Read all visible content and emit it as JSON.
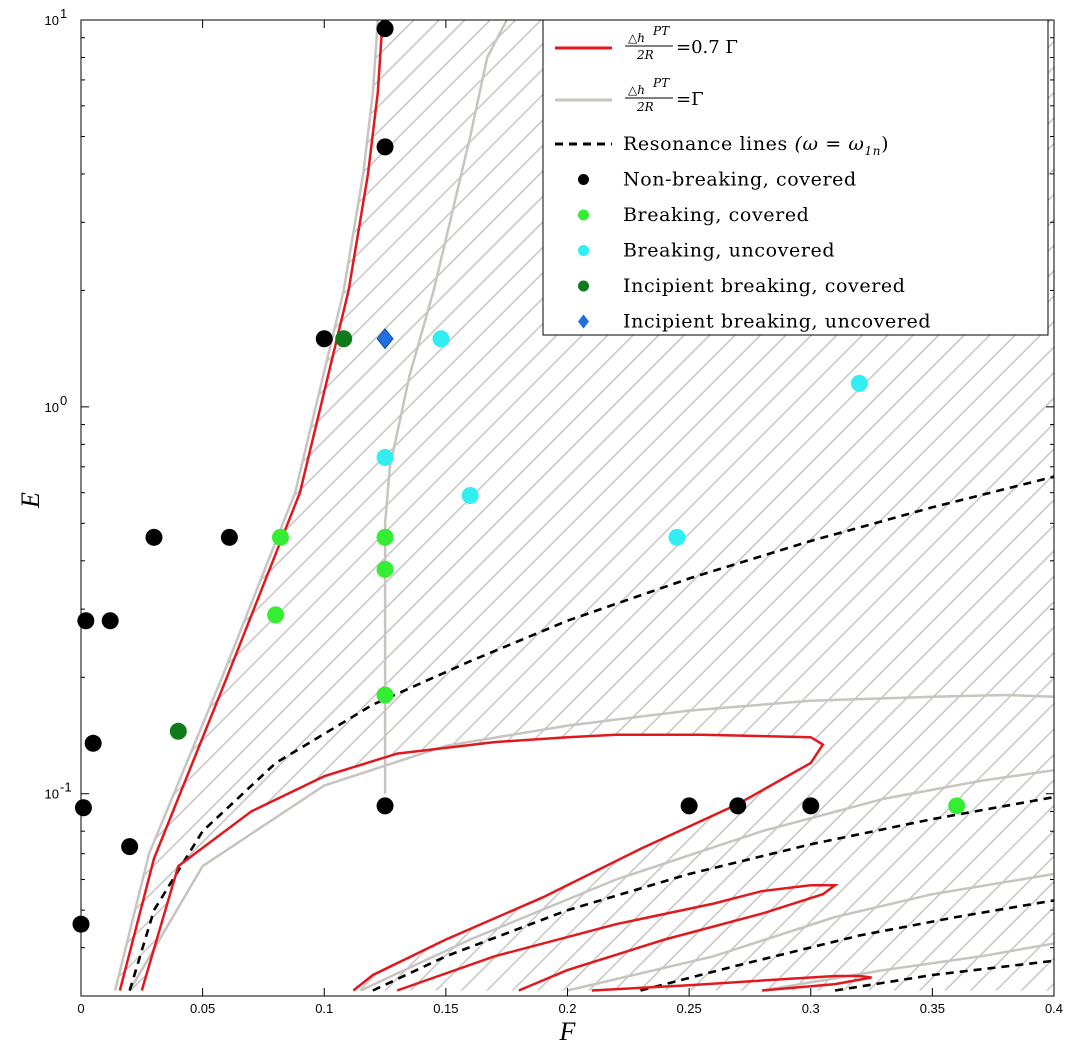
{
  "chart_data": {
    "type": "scatter",
    "xlabel": "F",
    "ylabel": "E",
    "xlim": [
      0,
      0.4
    ],
    "ylim": [
      0.03,
      10
    ],
    "yscale": "log",
    "grid": false,
    "legend_position": "top-right",
    "x_ticks": [
      "0",
      "0.05",
      "0.1",
      "0.15",
      "0.2",
      "0.25",
      "0.3",
      "0.35",
      "0.4"
    ],
    "x_tick_values": [
      0,
      0.05,
      0.1,
      0.15,
      0.2,
      0.25,
      0.3,
      0.35,
      0.4
    ],
    "y_ticks": [
      {
        "value": 10,
        "base": "10",
        "exp": "1"
      },
      {
        "value": 1,
        "base": "10",
        "exp": "0"
      },
      {
        "value": 0.1,
        "base": "10",
        "exp": "-1"
      }
    ],
    "legend": [
      {
        "key": "red",
        "kind": "line",
        "color": "#e0191f",
        "top": "△h",
        "sup": "PT",
        "bottom": "2R",
        "rhs": "=0.7 Γ"
      },
      {
        "key": "gray",
        "kind": "line",
        "color": "#c8c4bf",
        "top": "△h",
        "sup": "PT",
        "bottom": "2R",
        "rhs": "=Γ"
      },
      {
        "key": "res",
        "kind": "dashed",
        "color": "#000000",
        "label": "Resonance lines",
        "math": "(ω = ω",
        "sub": "1n",
        "close": ")"
      },
      {
        "key": "nbc",
        "kind": "dot",
        "color": "#000000",
        "label": "Non-breaking, covered"
      },
      {
        "key": "bc",
        "kind": "dot",
        "color": "#33ee33",
        "label": "Breaking, covered"
      },
      {
        "key": "bu",
        "kind": "dot",
        "color": "#33eef0",
        "label": "Breaking, uncovered"
      },
      {
        "key": "ibc",
        "kind": "dot",
        "color": "#0f7a1a",
        "label": "Incipient breaking, covered"
      },
      {
        "key": "ibu",
        "kind": "diamond",
        "color": "#1e6fe0",
        "label": "Incipient breaking, uncovered"
      }
    ],
    "series": [
      {
        "name": "Non-breaking, covered",
        "color": "#000000",
        "marker": "dot",
        "points": [
          {
            "x": 0.125,
            "y": 9.5
          },
          {
            "x": 0.125,
            "y": 4.7
          },
          {
            "x": 0.1,
            "y": 1.5
          },
          {
            "x": 0.03,
            "y": 0.46
          },
          {
            "x": 0.061,
            "y": 0.46
          },
          {
            "x": 0.002,
            "y": 0.28
          },
          {
            "x": 0.012,
            "y": 0.28
          },
          {
            "x": 0.005,
            "y": 0.135
          },
          {
            "x": 0.001,
            "y": 0.092
          },
          {
            "x": 0.02,
            "y": 0.073
          },
          {
            "x": 0.0,
            "y": 0.046
          },
          {
            "x": 0.125,
            "y": 0.093
          },
          {
            "x": 0.25,
            "y": 0.093
          },
          {
            "x": 0.27,
            "y": 0.093
          },
          {
            "x": 0.3,
            "y": 0.093
          }
        ]
      },
      {
        "name": "Breaking, covered",
        "color": "#33ee33",
        "marker": "dot",
        "points": [
          {
            "x": 0.082,
            "y": 0.46
          },
          {
            "x": 0.08,
            "y": 0.29
          },
          {
            "x": 0.125,
            "y": 0.46
          },
          {
            "x": 0.125,
            "y": 0.38
          },
          {
            "x": 0.125,
            "y": 0.18
          },
          {
            "x": 0.36,
            "y": 0.093
          }
        ]
      },
      {
        "name": "Breaking, uncovered",
        "color": "#33eef0",
        "marker": "dot",
        "points": [
          {
            "x": 0.148,
            "y": 1.5
          },
          {
            "x": 0.125,
            "y": 0.74
          },
          {
            "x": 0.16,
            "y": 0.59
          },
          {
            "x": 0.245,
            "y": 0.46
          },
          {
            "x": 0.32,
            "y": 1.15
          }
        ]
      },
      {
        "name": "Incipient breaking, covered",
        "color": "#0f7a1a",
        "marker": "dot",
        "points": [
          {
            "x": 0.108,
            "y": 1.5
          },
          {
            "x": 0.04,
            "y": 0.145
          }
        ]
      },
      {
        "name": "Incipient breaking, uncovered",
        "color": "#1e6fe0",
        "marker": "diamond",
        "points": [
          {
            "x": 0.125,
            "y": 1.5
          }
        ]
      }
    ],
    "curves": [
      {
        "kind": "red",
        "color": "#e0191f",
        "points": [
          [
            0.016,
            0.031
          ],
          [
            0.03,
            0.068
          ],
          [
            0.06,
            0.2
          ],
          [
            0.09,
            0.6
          ],
          [
            0.11,
            2.0
          ],
          [
            0.118,
            4.0
          ],
          [
            0.122,
            6.5
          ],
          [
            0.124,
            10
          ]
        ]
      },
      {
        "kind": "red",
        "color": "#e0191f",
        "points": [
          [
            0.025,
            0.031
          ],
          [
            0.04,
            0.065
          ],
          [
            0.07,
            0.09
          ],
          [
            0.1,
            0.111
          ],
          [
            0.13,
            0.127
          ],
          [
            0.17,
            0.136
          ],
          [
            0.2,
            0.14
          ],
          [
            0.22,
            0.142
          ],
          [
            0.255,
            0.142
          ],
          [
            0.3,
            0.14
          ],
          [
            0.305,
            0.134
          ],
          [
            0.3,
            0.12
          ],
          [
            0.27,
            0.094
          ],
          [
            0.23,
            0.072
          ],
          [
            0.19,
            0.054
          ],
          [
            0.15,
            0.042
          ],
          [
            0.12,
            0.034
          ],
          [
            0.112,
            0.031
          ]
        ]
      },
      {
        "kind": "red",
        "color": "#e0191f",
        "points": [
          [
            0.13,
            0.031
          ],
          [
            0.17,
            0.038
          ],
          [
            0.22,
            0.046
          ],
          [
            0.26,
            0.052
          ],
          [
            0.28,
            0.056
          ],
          [
            0.3,
            0.058
          ],
          [
            0.31,
            0.058
          ],
          [
            0.305,
            0.055
          ],
          [
            0.28,
            0.049
          ],
          [
            0.24,
            0.042
          ],
          [
            0.2,
            0.035
          ],
          [
            0.18,
            0.031
          ]
        ]
      },
      {
        "kind": "red",
        "color": "#e0191f",
        "points": [
          [
            0.21,
            0.031
          ],
          [
            0.25,
            0.032
          ],
          [
            0.29,
            0.0332
          ],
          [
            0.31,
            0.0338
          ],
          [
            0.32,
            0.0338
          ],
          [
            0.325,
            0.0335
          ],
          [
            0.31,
            0.0322
          ],
          [
            0.28,
            0.031
          ]
        ]
      },
      {
        "kind": "gray",
        "color": "#c8c4bf",
        "points": [
          [
            0.014,
            0.031
          ],
          [
            0.028,
            0.07
          ],
          [
            0.058,
            0.2
          ],
          [
            0.088,
            0.6
          ],
          [
            0.108,
            2.0
          ],
          [
            0.116,
            4.0
          ],
          [
            0.12,
            6.5
          ],
          [
            0.122,
            10
          ]
        ]
      },
      {
        "kind": "gray",
        "color": "#c8c4bf",
        "points": [
          [
            0.125,
            0.1
          ],
          [
            0.125,
            0.5
          ],
          [
            0.127,
            0.7
          ],
          [
            0.135,
            1.2
          ],
          [
            0.145,
            2.0
          ],
          [
            0.16,
            5.0
          ],
          [
            0.167,
            8.0
          ],
          [
            0.175,
            10
          ]
        ]
      },
      {
        "kind": "gray",
        "color": "#c8c4bf",
        "points": [
          [
            0.02,
            0.031
          ],
          [
            0.05,
            0.065
          ],
          [
            0.1,
            0.105
          ],
          [
            0.15,
            0.133
          ],
          [
            0.2,
            0.15
          ],
          [
            0.25,
            0.164
          ],
          [
            0.3,
            0.174
          ],
          [
            0.35,
            0.178
          ],
          [
            0.38,
            0.18
          ],
          [
            0.4,
            0.178
          ]
        ]
      },
      {
        "kind": "gray",
        "color": "#c8c4bf",
        "points": [
          [
            0.115,
            0.031
          ],
          [
            0.16,
            0.042
          ],
          [
            0.22,
            0.06
          ],
          [
            0.28,
            0.08
          ],
          [
            0.33,
            0.097
          ],
          [
            0.37,
            0.108
          ],
          [
            0.4,
            0.115
          ]
        ]
      },
      {
        "kind": "gray",
        "color": "#c8c4bf",
        "points": [
          [
            0.2,
            0.031
          ],
          [
            0.26,
            0.038
          ],
          [
            0.31,
            0.048
          ],
          [
            0.35,
            0.055
          ],
          [
            0.4,
            0.062
          ]
        ]
      },
      {
        "kind": "gray",
        "color": "#c8c4bf",
        "points": [
          [
            0.28,
            0.031
          ],
          [
            0.33,
            0.035
          ],
          [
            0.37,
            0.038
          ],
          [
            0.4,
            0.041
          ]
        ]
      },
      {
        "kind": "res",
        "color": "#000000",
        "points": [
          [
            0.02,
            0.031
          ],
          [
            0.03,
            0.05
          ],
          [
            0.05,
            0.08
          ],
          [
            0.08,
            0.12
          ],
          [
            0.12,
            0.17
          ],
          [
            0.16,
            0.22
          ],
          [
            0.2,
            0.28
          ],
          [
            0.25,
            0.36
          ],
          [
            0.3,
            0.45
          ],
          [
            0.35,
            0.55
          ],
          [
            0.4,
            0.66
          ]
        ]
      },
      {
        "kind": "res",
        "color": "#000000",
        "points": [
          [
            0.12,
            0.031
          ],
          [
            0.15,
            0.038
          ],
          [
            0.2,
            0.05
          ],
          [
            0.25,
            0.062
          ],
          [
            0.3,
            0.074
          ],
          [
            0.35,
            0.086
          ],
          [
            0.4,
            0.098
          ]
        ]
      },
      {
        "kind": "res",
        "color": "#000000",
        "points": [
          [
            0.23,
            0.031
          ],
          [
            0.27,
            0.036
          ],
          [
            0.32,
            0.043
          ],
          [
            0.36,
            0.048
          ],
          [
            0.4,
            0.053
          ]
        ]
      },
      {
        "kind": "res",
        "color": "#000000",
        "points": [
          [
            0.31,
            0.031
          ],
          [
            0.35,
            0.034
          ],
          [
            0.4,
            0.037
          ]
        ]
      }
    ],
    "hatched_region": [
      [
        0.014,
        0.031
      ],
      [
        0.028,
        0.07
      ],
      [
        0.058,
        0.2
      ],
      [
        0.088,
        0.6
      ],
      [
        0.108,
        2.0
      ],
      [
        0.116,
        4.0
      ],
      [
        0.12,
        6.5
      ],
      [
        0.122,
        10
      ],
      [
        0.4,
        10
      ],
      [
        0.4,
        0.031
      ]
    ],
    "unhatched_regions": [
      [
        [
          0.025,
          0.031
        ],
        [
          0.04,
          0.065
        ],
        [
          0.07,
          0.09
        ],
        [
          0.1,
          0.111
        ],
        [
          0.13,
          0.127
        ],
        [
          0.17,
          0.136
        ],
        [
          0.2,
          0.14
        ],
        [
          0.22,
          0.142
        ],
        [
          0.255,
          0.142
        ],
        [
          0.3,
          0.14
        ],
        [
          0.305,
          0.134
        ],
        [
          0.3,
          0.12
        ],
        [
          0.27,
          0.094
        ],
        [
          0.23,
          0.072
        ],
        [
          0.19,
          0.054
        ],
        [
          0.15,
          0.042
        ],
        [
          0.12,
          0.034
        ],
        [
          0.112,
          0.031
        ]
      ]
    ]
  }
}
